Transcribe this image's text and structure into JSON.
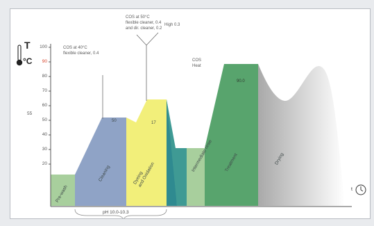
{
  "axis": {
    "y_symbol": "T",
    "y_unit": "°C",
    "ticks": [
      "100",
      "90",
      "80",
      "70",
      "60",
      "50",
      "40",
      "30",
      "20"
    ],
    "ticks_highlight": "90",
    "side_value": "55",
    "x_symbol": "t",
    "ph_label": "pH 10.0-10.3"
  },
  "annotations": {
    "cos40": "COS at 40°C\nflexible cleaner, 0.4",
    "cos50": "COS at 50°C\nflexible cleaner, 0.4\nand dir. cleaner, 0.2",
    "high": "High 0.3",
    "cos_mid": "COS\nHeat"
  },
  "stages": {
    "pre_wash": "Pre-wash",
    "cleaning": "Cleaning",
    "cleaning_temp": "50",
    "dyeing": "Dyeing\nand Oxidation",
    "dyeing_temp": "17",
    "intermediate": "Intermediate rinse",
    "treatment": "Treatment",
    "treatment_temp": "90.0",
    "drying": "Drying"
  },
  "colors": {
    "prewash": "#a8cf9d",
    "cleaning": "#8fa3c6",
    "dyeing": "#f2ef7a",
    "teal": "#3f9a94",
    "treatment": "#58a46d",
    "drying": "#c9c9c9"
  }
}
